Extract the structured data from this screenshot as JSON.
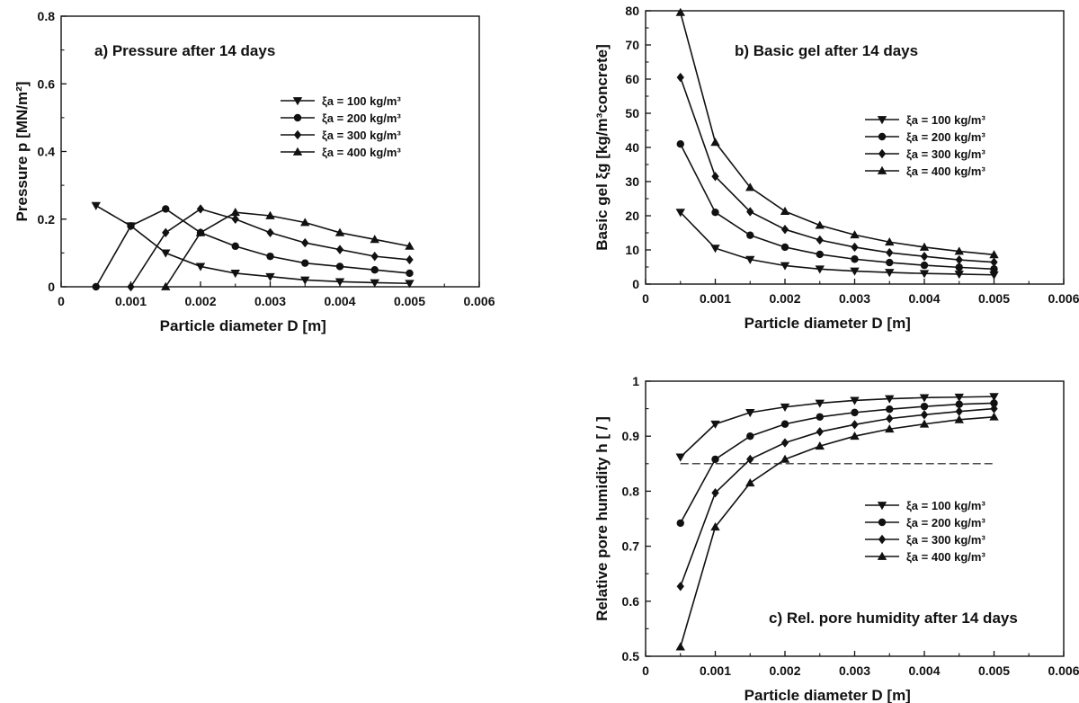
{
  "chart_data": [
    {
      "type": "line",
      "title": "a)  Pressure after 14 days",
      "xlabel": "Particle diameter  D  [m]",
      "ylabel": "Pressure  p  [MN/m²]",
      "xlim": [
        0,
        0.006
      ],
      "ylim": [
        0,
        0.8
      ],
      "x_ticks": [
        0,
        0.001,
        0.002,
        0.003,
        0.004,
        0.005,
        0.006
      ],
      "x_tick_labels": [
        "0",
        "0.001",
        "0.002",
        "0.003",
        "0.004",
        "0.005",
        "0.006"
      ],
      "y_ticks": [
        0,
        0.2,
        0.4,
        0.6,
        0.8
      ],
      "y_tick_labels": [
        "0",
        "0.2",
        "0.4",
        "0.6",
        "0.8"
      ],
      "legend_position": "upper-right",
      "x": [
        0.0005,
        0.001,
        0.0015,
        0.002,
        0.0025,
        0.003,
        0.0035,
        0.004,
        0.0045,
        0.005
      ],
      "series": [
        {
          "name": "ξa = 100 kg/m³",
          "marker": "triangle-down",
          "values": [
            0.24,
            0.18,
            0.1,
            0.06,
            0.04,
            0.03,
            0.02,
            0.015,
            0.012,
            0.01
          ]
        },
        {
          "name": "ξa = 200 kg/m³",
          "marker": "circle",
          "values": [
            0.0,
            0.18,
            0.23,
            0.16,
            0.12,
            0.09,
            0.07,
            0.06,
            0.05,
            0.04
          ]
        },
        {
          "name": "ξa = 300 kg/m³",
          "marker": "diamond",
          "values": [
            null,
            0.0,
            0.16,
            0.23,
            0.2,
            0.16,
            0.13,
            0.11,
            0.09,
            0.08
          ]
        },
        {
          "name": "ξa = 400 kg/m³",
          "marker": "triangle-up",
          "values": [
            null,
            null,
            0.0,
            0.16,
            0.22,
            0.21,
            0.19,
            0.16,
            0.14,
            0.12
          ]
        }
      ]
    },
    {
      "type": "line",
      "title": "b)  Basic gel after 14 days",
      "xlabel": "Particle diameter  D  [m]",
      "ylabel": "Basic gel  ξg  [kg/m³concrete]",
      "xlim": [
        0,
        0.006
      ],
      "ylim": [
        0,
        80
      ],
      "x_ticks": [
        0,
        0.001,
        0.002,
        0.003,
        0.004,
        0.005,
        0.006
      ],
      "x_tick_labels": [
        "0",
        "0.001",
        "0.002",
        "0.003",
        "0.004",
        "0.005",
        "0.006"
      ],
      "y_ticks": [
        0,
        10,
        20,
        30,
        40,
        50,
        60,
        70,
        80
      ],
      "y_tick_labels": [
        "0",
        "10",
        "20",
        "30",
        "40",
        "50",
        "60",
        "70",
        "80"
      ],
      "legend_position": "right",
      "x": [
        0.0005,
        0.001,
        0.0015,
        0.002,
        0.0025,
        0.003,
        0.0035,
        0.004,
        0.0045,
        0.005
      ],
      "series": [
        {
          "name": "ξa = 100 kg/m³",
          "marker": "triangle-down",
          "values": [
            21,
            10.5,
            7.2,
            5.4,
            4.4,
            3.8,
            3.4,
            3.1,
            2.9,
            2.7
          ]
        },
        {
          "name": "ξa = 200 kg/m³",
          "marker": "circle",
          "values": [
            41,
            21,
            14.3,
            10.8,
            8.7,
            7.3,
            6.3,
            5.5,
            4.9,
            4.4
          ]
        },
        {
          "name": "ξa = 300 kg/m³",
          "marker": "diamond",
          "values": [
            60.5,
            31.5,
            21.2,
            16.0,
            12.9,
            10.8,
            9.2,
            8.1,
            7.1,
            6.4
          ]
        },
        {
          "name": "ξa = 400 kg/m³",
          "marker": "triangle-up",
          "values": [
            79.5,
            41.5,
            28.3,
            21.3,
            17.2,
            14.4,
            12.3,
            10.8,
            9.6,
            8.6
          ]
        }
      ]
    },
    {
      "type": "line",
      "title": "c)  Rel. pore humidity after 14 days",
      "xlabel": "Particle diameter  D  [m]",
      "ylabel": "Relative pore humidity  h  [ / ]",
      "xlim": [
        0,
        0.006
      ],
      "ylim": [
        0.5,
        1.0
      ],
      "x_ticks": [
        0,
        0.001,
        0.002,
        0.003,
        0.004,
        0.005,
        0.006
      ],
      "x_tick_labels": [
        "0",
        "0.001",
        "0.002",
        "0.003",
        "0.004",
        "0.005",
        "0.006"
      ],
      "y_ticks": [
        0.5,
        0.6,
        0.7,
        0.8,
        0.9,
        1.0
      ],
      "y_tick_labels": [
        "0.5",
        "0.6",
        "0.7",
        "0.8",
        "0.9",
        "1"
      ],
      "legend_position": "right",
      "reference_line": {
        "y": 0.85,
        "x_range": [
          0.0005,
          0.005
        ],
        "style": "dashed"
      },
      "x": [
        0.0005,
        0.001,
        0.0015,
        0.002,
        0.0025,
        0.003,
        0.0035,
        0.004,
        0.0045,
        0.005
      ],
      "series": [
        {
          "name": "ξa = 100 kg/m³",
          "marker": "triangle-down",
          "values": [
            0.862,
            0.922,
            0.943,
            0.953,
            0.96,
            0.965,
            0.968,
            0.97,
            0.971,
            0.972
          ]
        },
        {
          "name": "ξa = 200 kg/m³",
          "marker": "circle",
          "values": [
            0.742,
            0.858,
            0.9,
            0.922,
            0.935,
            0.943,
            0.949,
            0.954,
            0.958,
            0.96
          ]
        },
        {
          "name": "ξa = 300 kg/m³",
          "marker": "diamond",
          "values": [
            0.627,
            0.797,
            0.858,
            0.888,
            0.908,
            0.921,
            0.932,
            0.939,
            0.945,
            0.95
          ]
        },
        {
          "name": "ξa = 400 kg/m³",
          "marker": "triangle-up",
          "values": [
            0.517,
            0.735,
            0.815,
            0.858,
            0.882,
            0.9,
            0.913,
            0.922,
            0.93,
            0.935
          ]
        }
      ]
    }
  ]
}
